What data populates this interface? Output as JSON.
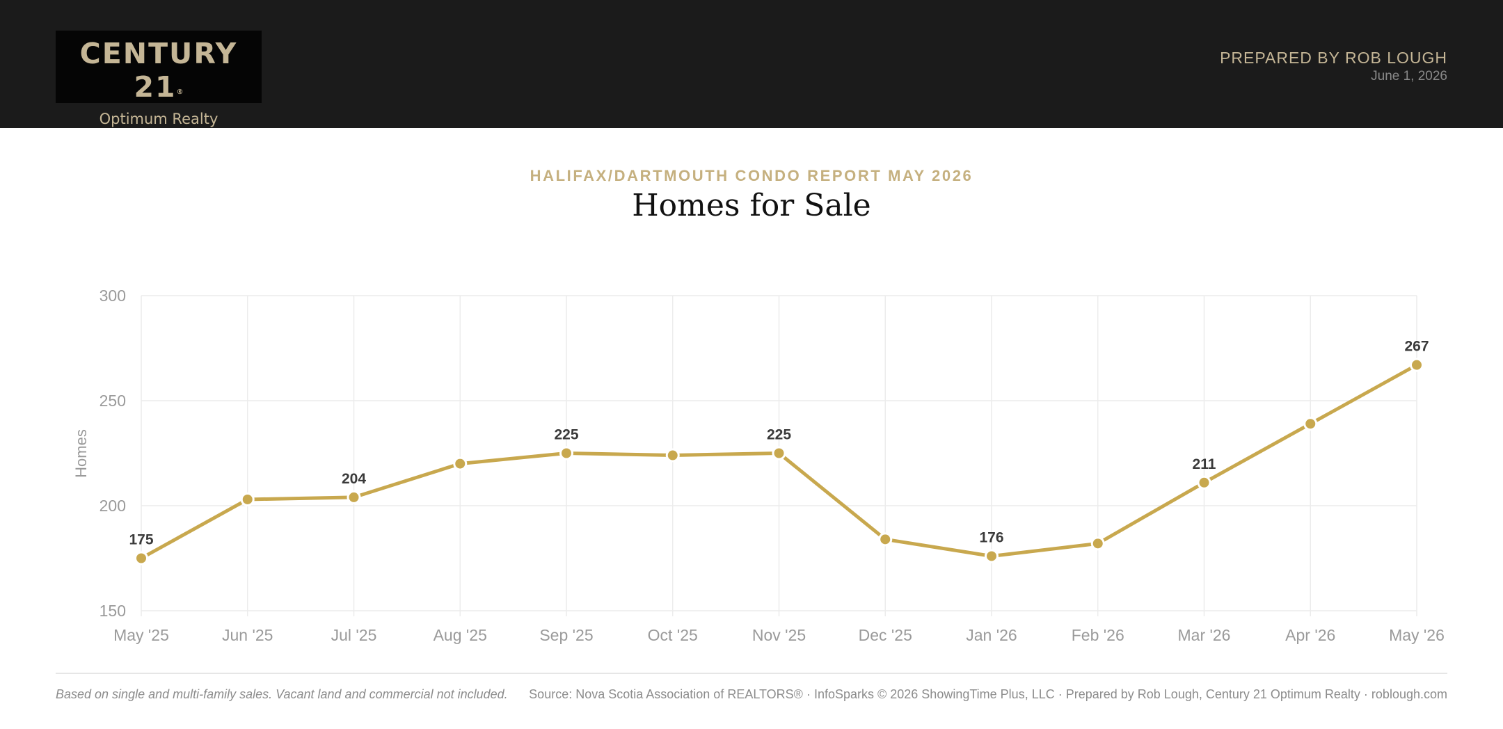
{
  "header": {
    "logo": {
      "brand": "CENTURY 21",
      "registered_mark": "®",
      "sub": "Optimum Realty"
    },
    "prepared_by": "PREPARED BY ROB LOUGH",
    "date": "June 1, 2026"
  },
  "report": {
    "eyebrow": "HALIFAX/DARTMOUTH CONDO REPORT MAY 2026",
    "title": "Homes for Sale"
  },
  "chart_data": {
    "type": "line",
    "title": "Homes for Sale",
    "ylabel": "Homes",
    "xlabel": "",
    "ylim": [
      150,
      300
    ],
    "yticks": [
      150,
      200,
      250,
      300
    ],
    "grid": true,
    "legend": "none",
    "categories": [
      "May '25",
      "Jun '25",
      "Jul '25",
      "Aug '25",
      "Sep '25",
      "Oct '25",
      "Nov '25",
      "Dec '25",
      "Jan '26",
      "Feb '26",
      "Mar '26",
      "Apr '26",
      "May '26"
    ],
    "series": [
      {
        "values": [
          175,
          203,
          204,
          220,
          225,
          224,
          225,
          184,
          176,
          182,
          211,
          239,
          267
        ],
        "labeled": [
          true,
          false,
          true,
          false,
          true,
          false,
          true,
          false,
          true,
          false,
          true,
          false,
          true
        ],
        "color": "#c8a84e"
      }
    ]
  },
  "footer": {
    "note": "Based on single and multi-family sales. Vacant land and commercial not included.",
    "source": "Source: Nova Scotia Association of REALTORS® · InfoSparks © 2026 ShowingTime Plus, LLC · Prepared by Rob Lough, Century 21 Optimum Realty · roblough.com"
  }
}
